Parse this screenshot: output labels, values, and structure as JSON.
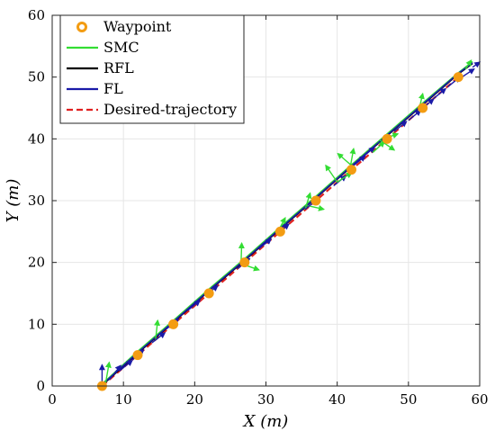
{
  "chart_data": {
    "type": "line",
    "xlabel": "X (m)",
    "ylabel": "Y (m)",
    "xlim": [
      0,
      60
    ],
    "ylim": [
      0,
      60
    ],
    "xticks": [
      0,
      10,
      20,
      30,
      40,
      50,
      60
    ],
    "yticks": [
      0,
      10,
      20,
      30,
      40,
      50,
      60
    ],
    "grid": true,
    "legend_position": "top-left",
    "legend": [
      "Waypoint",
      "SMC",
      "RFL",
      "FL",
      "Desired-trajectory"
    ],
    "waypoints": {
      "name": "Waypoint",
      "color": "#f39c12",
      "x": [
        7,
        12,
        17,
        22,
        27,
        32,
        37,
        42,
        47,
        52,
        57
      ],
      "y": [
        0,
        5,
        10,
        15,
        20,
        25,
        30,
        35,
        40,
        45,
        50
      ]
    },
    "series": [
      {
        "name": "SMC",
        "color": "#33dd33",
        "style": "solid",
        "x": [
          7,
          12,
          17,
          22,
          27,
          32,
          37,
          42,
          47,
          52,
          57,
          59
        ],
        "y": [
          0.3,
          5.6,
          10.6,
          15.7,
          20.6,
          25.7,
          30.7,
          35.8,
          40.8,
          45.8,
          50.7,
          52.5
        ]
      },
      {
        "name": "RFL",
        "color": "#000000",
        "style": "solid",
        "x": [
          7,
          12,
          17,
          22,
          27,
          32,
          37,
          42,
          47,
          52,
          57,
          59
        ],
        "y": [
          0.1,
          5.3,
          10.3,
          15.4,
          20.3,
          25.4,
          30.4,
          35.5,
          40.5,
          45.5,
          50.5,
          52.2
        ]
      },
      {
        "name": "FL",
        "color": "#1a1aa8",
        "style": "solid",
        "x": [
          7,
          12,
          17,
          22,
          27,
          32,
          37,
          42,
          47,
          52,
          57,
          59
        ],
        "y": [
          0.2,
          5.4,
          10.4,
          15.5,
          20.4,
          25.5,
          30.5,
          35.6,
          40.6,
          45.6,
          50.6,
          52.3
        ]
      },
      {
        "name": "Desired-trajectory",
        "color": "#e02020",
        "style": "dashed",
        "x": [
          7,
          57
        ],
        "y": [
          0,
          50
        ]
      }
    ],
    "arrows": [
      {
        "x": 7,
        "y": 0.2,
        "dx": 0,
        "dy": 3.2,
        "color": "#1a1aa8"
      },
      {
        "x": 7.5,
        "y": 0.5,
        "dx": 0.5,
        "dy": 3.3,
        "color": "#33dd33"
      },
      {
        "x": 8,
        "y": 1,
        "dx": 1.6,
        "dy": 2.3,
        "color": "#1a1aa8"
      },
      {
        "x": 9.5,
        "y": 2.5,
        "dx": 1.7,
        "dy": 1.6,
        "color": "#1a1aa8"
      },
      {
        "x": 11.2,
        "y": 4.2,
        "dx": 1.6,
        "dy": 1.6,
        "color": "#1a1aa8"
      },
      {
        "x": 14.5,
        "y": 7.4,
        "dx": 0.3,
        "dy": 3.2,
        "color": "#33dd33"
      },
      {
        "x": 14,
        "y": 7,
        "dx": 1.8,
        "dy": 1.6,
        "color": "#1a1aa8"
      },
      {
        "x": 16,
        "y": 9.2,
        "dx": 1.7,
        "dy": 1.6,
        "color": "#1a1aa8"
      },
      {
        "x": 19,
        "y": 12.2,
        "dx": 1.7,
        "dy": 1.6,
        "color": "#1a1aa8"
      },
      {
        "x": 21.5,
        "y": 14.6,
        "dx": 1.7,
        "dy": 1.6,
        "color": "#1a1aa8"
      },
      {
        "x": 26.5,
        "y": 19.8,
        "dx": 0.1,
        "dy": 3.3,
        "color": "#33dd33"
      },
      {
        "x": 26.5,
        "y": 19.8,
        "dx": 2.5,
        "dy": -1.0,
        "color": "#33dd33"
      },
      {
        "x": 26,
        "y": 19,
        "dx": 1.7,
        "dy": 1.6,
        "color": "#1a1aa8"
      },
      {
        "x": 29,
        "y": 22.2,
        "dx": 1.7,
        "dy": 1.6,
        "color": "#1a1aa8"
      },
      {
        "x": 31.5,
        "y": 24.6,
        "dx": 1.2,
        "dy": 2.6,
        "color": "#33dd33"
      },
      {
        "x": 31.5,
        "y": 24.6,
        "dx": 1.7,
        "dy": 1.6,
        "color": "#1a1aa8"
      },
      {
        "x": 35.5,
        "y": 28.6,
        "dx": 0.7,
        "dy": 2.6,
        "color": "#33dd33"
      },
      {
        "x": 35.8,
        "y": 29.2,
        "dx": 2.3,
        "dy": -0.6,
        "color": "#33dd33"
      },
      {
        "x": 35.5,
        "y": 28.6,
        "dx": 1.7,
        "dy": 1.6,
        "color": "#1a1aa8"
      },
      {
        "x": 39.5,
        "y": 32.4,
        "dx": 1.7,
        "dy": 1.6,
        "color": "#1a1aa8"
      },
      {
        "x": 40,
        "y": 33,
        "dx": -1.6,
        "dy": 2.7,
        "color": "#33dd33"
      },
      {
        "x": 40,
        "y": 33,
        "dx": 2.0,
        "dy": 1.5,
        "color": "#33dd33"
      },
      {
        "x": 41.8,
        "y": 35.2,
        "dx": 0.5,
        "dy": 3.2,
        "color": "#33dd33"
      },
      {
        "x": 42.1,
        "y": 35.6,
        "dx": -2.0,
        "dy": 2.0,
        "color": "#33dd33"
      },
      {
        "x": 42.2,
        "y": 35.6,
        "dx": 1.7,
        "dy": 1.6,
        "color": "#1a1aa8"
      },
      {
        "x": 43.5,
        "y": 37,
        "dx": 1.7,
        "dy": 1.6,
        "color": "#1a1aa8"
      },
      {
        "x": 45,
        "y": 37.8,
        "dx": 1.6,
        "dy": 1.7,
        "color": "#33dd33"
      },
      {
        "x": 46,
        "y": 39.8,
        "dx": 2.0,
        "dy": -1.6,
        "color": "#33dd33"
      },
      {
        "x": 46.5,
        "y": 40,
        "dx": 2.0,
        "dy": 0.8,
        "color": "#33dd33"
      },
      {
        "x": 48,
        "y": 41.2,
        "dx": 1.7,
        "dy": 1.6,
        "color": "#1a1aa8"
      },
      {
        "x": 50,
        "y": 43,
        "dx": 1.7,
        "dy": 1.6,
        "color": "#1a1aa8"
      },
      {
        "x": 51.8,
        "y": 44.8,
        "dx": 1.7,
        "dy": 1.6,
        "color": "#1a1aa8"
      },
      {
        "x": 51.5,
        "y": 44.8,
        "dx": 0.5,
        "dy": 2.5,
        "color": "#33dd33"
      },
      {
        "x": 53.5,
        "y": 46.5,
        "dx": 1.7,
        "dy": 1.6,
        "color": "#1a1aa8"
      },
      {
        "x": 55.5,
        "y": 48.4,
        "dx": 1.7,
        "dy": 1.6,
        "color": "#1a1aa8"
      },
      {
        "x": 57.5,
        "y": 50,
        "dx": 1.7,
        "dy": 1.3,
        "color": "#1a1aa8"
      },
      {
        "x": 58,
        "y": 51.3,
        "dx": 0.8,
        "dy": 1.4,
        "color": "#33dd33"
      },
      {
        "x": 59,
        "y": 51.6,
        "dx": 1.0,
        "dy": 0.8,
        "color": "#1a1aa8"
      }
    ]
  }
}
